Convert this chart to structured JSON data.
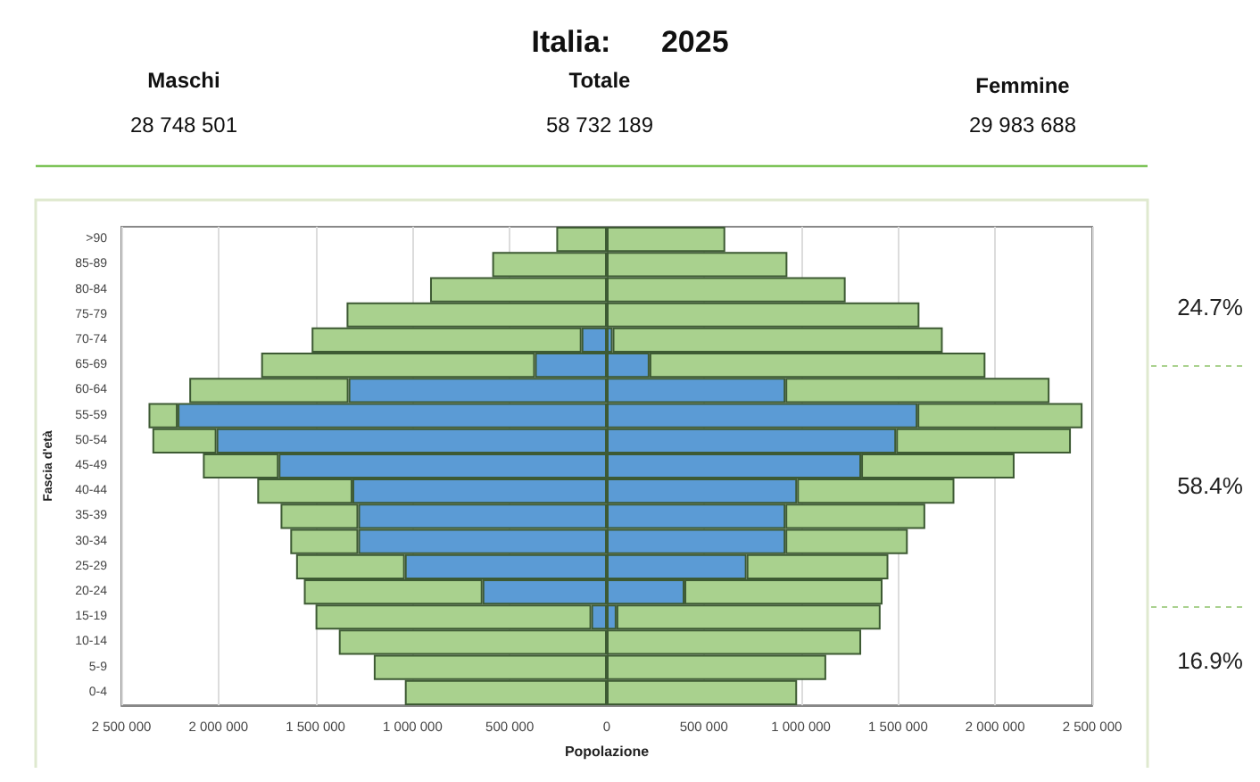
{
  "chart_data": {
    "type": "bar",
    "orientation": "horizontal",
    "title": "Italia:      2025",
    "xlabel": "Popolazione",
    "ylabel": "Fascia d'età",
    "annotations": [
      "Maschi",
      "28 748 501",
      "Totale",
      "58 732 189",
      "Femmine",
      "29 983 688",
      "24.7%",
      "58.4%",
      "16.9%"
    ],
    "categories": [
      ">90",
      "85-89",
      "80-84",
      "75-79",
      "70-74",
      "65-69",
      "60-64",
      "55-59",
      "50-54",
      "45-49",
      "40-44",
      "35-39",
      "30-34",
      "25-29",
      "20-24",
      "15-19",
      "10-14",
      "5-9",
      "0-4"
    ],
    "series": [
      {
        "color": "#5b9bd5",
        "values": [
          null,
          null,
          null,
          null,
          -130000,
          -370000,
          -1330000,
          -2210000,
          -2010000,
          -1690000,
          -1310000,
          -1280000,
          -1280000,
          -1040000,
          -640000,
          -80000,
          null,
          null,
          null
        ]
      },
      {
        "color": "#a9d18e",
        "values": [
          -260000,
          -590000,
          -910000,
          -1340000,
          -1390000,
          -1410000,
          -820000,
          -150000,
          -330000,
          -390000,
          -490000,
          -400000,
          -350000,
          -560000,
          -920000,
          -1420000,
          -1380000,
          -1200000,
          -1040000
        ]
      },
      {
        "color": "#5b9bd5",
        "values": [
          null,
          null,
          null,
          null,
          30000,
          220000,
          920000,
          1600000,
          1490000,
          1310000,
          980000,
          920000,
          920000,
          720000,
          400000,
          50000,
          null,
          null,
          null
        ]
      },
      {
        "color": "#a9d18e",
        "values": [
          610000,
          930000,
          1230000,
          1610000,
          1700000,
          1730000,
          1360000,
          850000,
          900000,
          790000,
          810000,
          720000,
          630000,
          730000,
          1020000,
          1360000,
          1310000,
          1130000,
          980000
        ]
      }
    ],
    "xlim": [
      -2500000,
      2500000
    ],
    "xticks": [
      {
        "value": -2500000,
        "label": "2 500 000"
      },
      {
        "value": -2000000,
        "label": "2 000 000"
      },
      {
        "value": -1500000,
        "label": "1 500 000"
      },
      {
        "value": -1000000,
        "label": "1 000 000"
      },
      {
        "value": -500000,
        "label": "500 000"
      },
      0,
      {
        "value": 500000,
        "label": "500 000"
      },
      {
        "value": 1000000,
        "label": "1 000 000"
      },
      {
        "value": 1500000,
        "label": "1 500 000"
      },
      {
        "value": 2000000,
        "label": "2 000 000"
      },
      {
        "value": 2500000,
        "label": "2 500 000"
      }
    ],
    "stacked": true,
    "grid": "x"
  }
}
